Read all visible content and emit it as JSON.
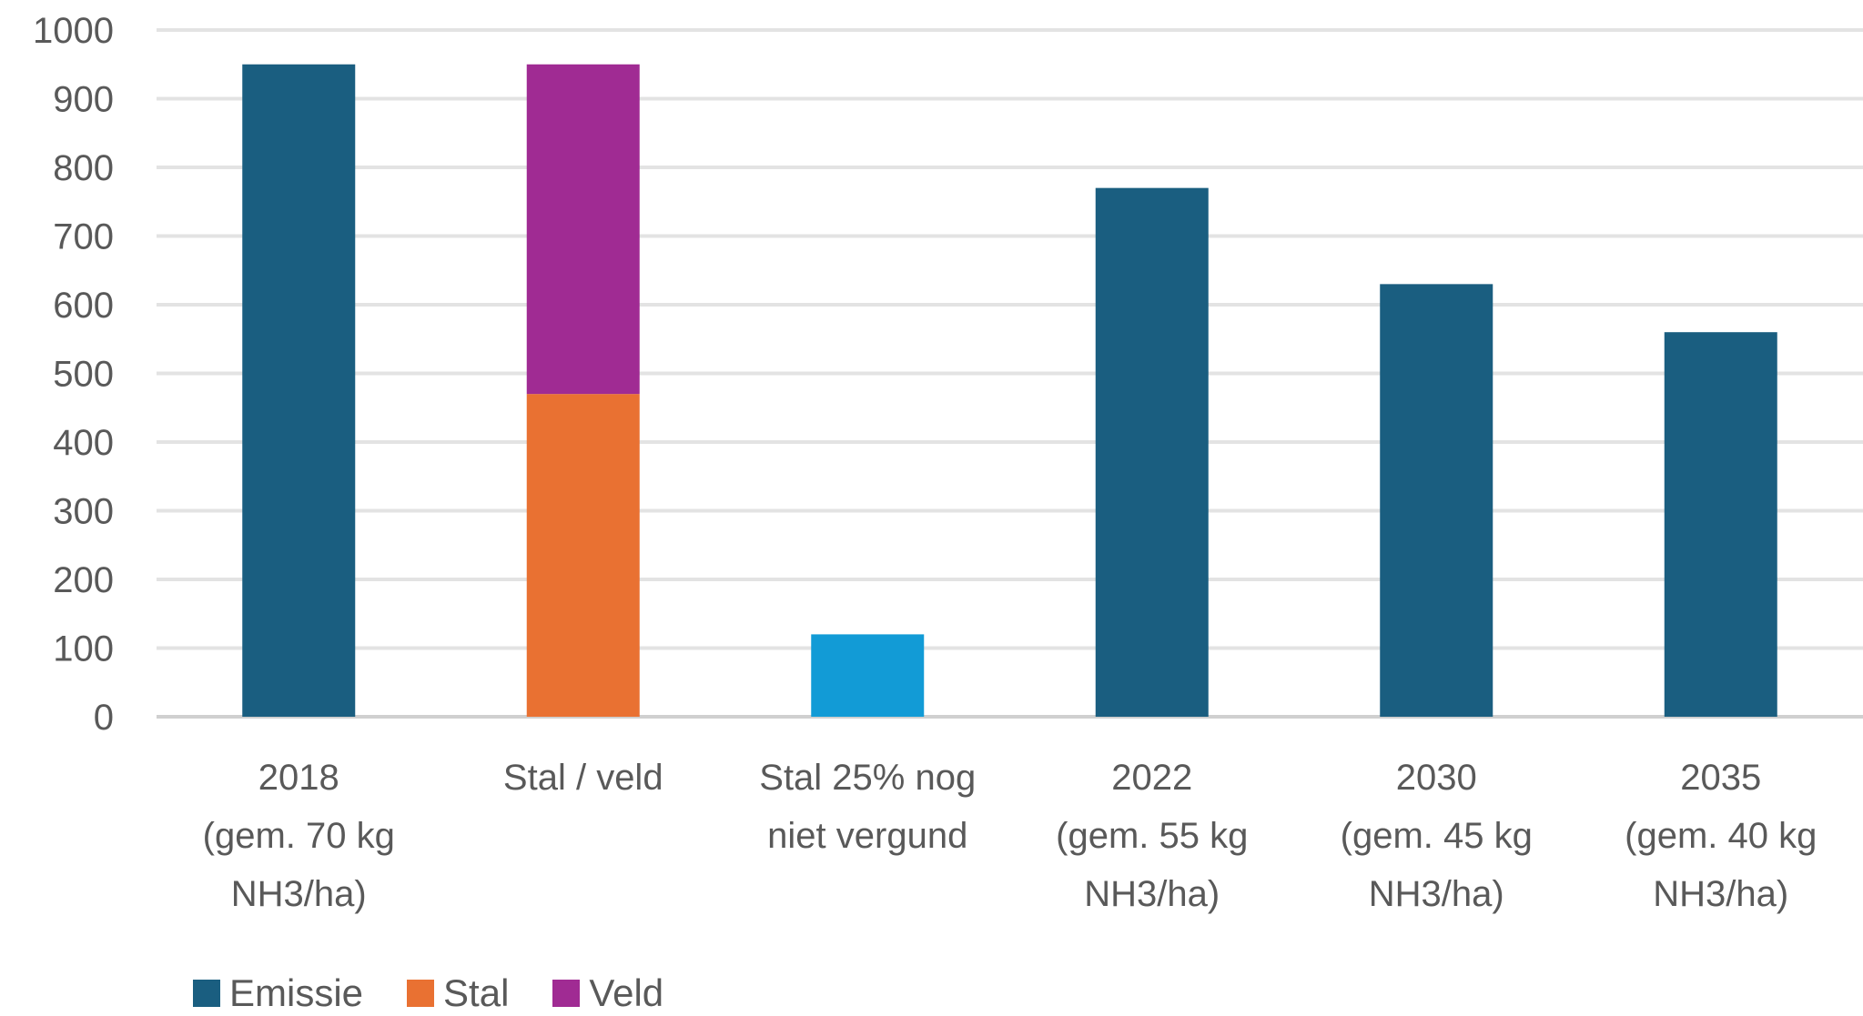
{
  "chart_data": {
    "type": "bar",
    "stacked": true,
    "ylim": [
      0,
      1000
    ],
    "y_ticks": [
      0,
      100,
      200,
      300,
      400,
      500,
      600,
      700,
      800,
      900,
      1000
    ],
    "grid": true,
    "legend_position": "bottom-left",
    "categories": [
      [
        "2018",
        "(gem. 70 kg",
        "NH3/ha)"
      ],
      [
        "Stal / veld"
      ],
      [
        "Stal 25% nog",
        "niet vergund"
      ],
      [
        "2022",
        "(gem. 55 kg",
        "NH3/ha)"
      ],
      [
        "2030",
        "(gem. 45 kg",
        "NH3/ha)"
      ],
      [
        "2035",
        "(gem. 40 kg",
        "NH3/ha)"
      ]
    ],
    "series": [
      {
        "name": "Emissie",
        "color": "#1a5e80",
        "values": [
          950,
          0,
          0,
          770,
          630,
          560
        ]
      },
      {
        "name": "Stal",
        "color": "#e97132",
        "values": [
          0,
          470,
          0,
          0,
          0,
          0
        ]
      },
      {
        "name": "Veld",
        "color": "#a02b93",
        "values": [
          0,
          480,
          0,
          0,
          0,
          0
        ]
      },
      {
        "name": "",
        "color": "#129bd6",
        "values": [
          0,
          0,
          120,
          0,
          0,
          0
        ]
      }
    ],
    "legend": [
      "Emissie",
      "Stal",
      "Veld"
    ]
  }
}
